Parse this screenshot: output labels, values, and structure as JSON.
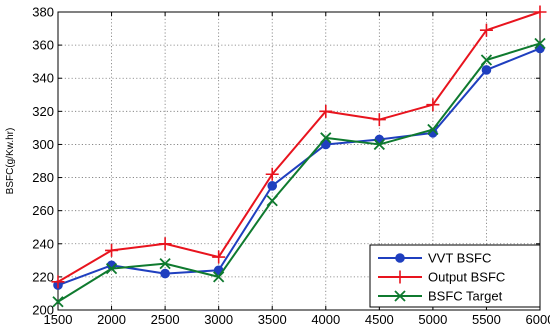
{
  "chart_data": {
    "type": "line",
    "title": "",
    "xlabel": "",
    "ylabel": "BSFC(g/Kw.hr)",
    "x": [
      1500,
      2000,
      2500,
      3000,
      3500,
      4000,
      4500,
      5000,
      5500,
      6000
    ],
    "xlim": [
      1500,
      6000
    ],
    "ylim": [
      200,
      380
    ],
    "xticks": [
      1500,
      2000,
      2500,
      3000,
      3500,
      4000,
      4500,
      5000,
      5500,
      6000
    ],
    "yticks": [
      200,
      220,
      240,
      260,
      280,
      300,
      320,
      340,
      360,
      380
    ],
    "grid": true,
    "grid_style": "dotted",
    "legend_position": "bottom-right",
    "series": [
      {
        "name": "VVT BSFC",
        "color": "#1f3fbf",
        "marker": "circle",
        "values": [
          215,
          227,
          222,
          224,
          275,
          300,
          303,
          307,
          345,
          358
        ]
      },
      {
        "name": "Output BSFC",
        "color": "#e8141e",
        "marker": "plus",
        "values": [
          217,
          236,
          240,
          232,
          282,
          320,
          315,
          324,
          369,
          380
        ]
      },
      {
        "name": "BSFC Target",
        "color": "#0f7a2f",
        "marker": "x",
        "values": [
          205,
          225,
          228,
          220,
          266,
          304,
          300,
          309,
          351,
          361
        ]
      }
    ]
  }
}
